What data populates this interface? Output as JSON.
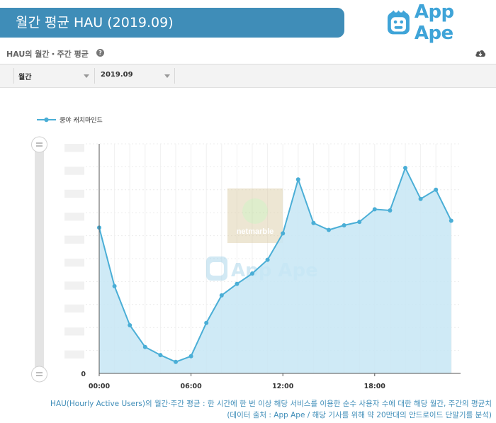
{
  "header": {
    "title": "월간 평균 HAU (2019.09)",
    "brand_name": "App Ape",
    "brand_color": "#3fa4d8",
    "banner_color": "#3f8db8"
  },
  "panel": {
    "title": "HAU의 월간・주간 평균",
    "help_icon": "question-circle-icon",
    "download_icon": "cloud-download-icon"
  },
  "filters": {
    "period": "월간",
    "month": "2019.09"
  },
  "watermark": {
    "publisher_logo_text": "netmarble",
    "brand_text": "App Ape"
  },
  "chart_data": {
    "type": "area",
    "legend_position": "top-left",
    "series": [
      {
        "name": "쿵야 캐치마인드",
        "color": "#4aaed6",
        "values": [
          63.5,
          38,
          21,
          11.5,
          8,
          5,
          7.5,
          22,
          34,
          39,
          43.5,
          49.5,
          61,
          84.5,
          65.5,
          62.5,
          64.5,
          66,
          71.5,
          71,
          89.5,
          76,
          80,
          66.5
        ]
      }
    ],
    "x": [
      0,
      1,
      2,
      3,
      4,
      5,
      6,
      7,
      8,
      9,
      10,
      11,
      12,
      13,
      14,
      15,
      16,
      17,
      18,
      19,
      20,
      21,
      22,
      23
    ],
    "x_ticks": [
      {
        "x": 0,
        "label": "00:00"
      },
      {
        "x": 6,
        "label": "06:00"
      },
      {
        "x": 12,
        "label": "12:00"
      },
      {
        "x": 18,
        "label": "18:00"
      }
    ],
    "y_tick_labels": [
      "0"
    ],
    "ylim": [
      0,
      100
    ],
    "grid": true
  },
  "footnote": {
    "line1": "HAU(Hourly Active Users)의 월간·주간 평균 : 한 시간에 한 번 이상 해당 서비스를 이용한 순수 사용자 수에 대한 해당 월간, 주간의 평균치",
    "line2": "(데이터 출처 : App Ape / 해당 기사를 위해 약 20만대의 안드로이드 단말기를 분석)"
  }
}
